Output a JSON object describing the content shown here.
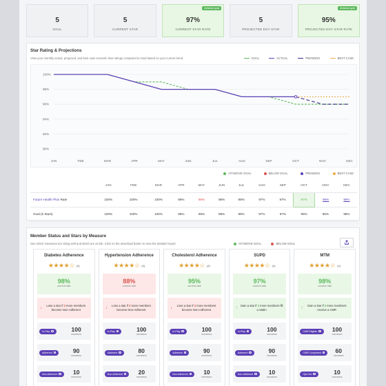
{
  "kpis": [
    {
      "value": "5",
      "label": "GOAL",
      "badge": ""
    },
    {
      "value": "5",
      "label": "CURRENT STAR",
      "badge": ""
    },
    {
      "value": "97%",
      "label": "CURRENT STAR RATE",
      "badge": "At/above goal"
    },
    {
      "value": "5",
      "label": "PROJECTED EOY STAR",
      "badge": ""
    },
    {
      "value": "95%",
      "label": "PROJECTED EOY STAR RATE",
      "badge": "At/above goal"
    }
  ],
  "star_panel": {
    "title": "Star Rating & Projections",
    "subtitle": "View your monthly actual, projected, and best case scenario Star ratings compared to Goal based on your current trend",
    "legend_top": [
      {
        "label": "GOAL",
        "color": "#5cb85c"
      },
      {
        "label": "ACTUAL",
        "color": "#5b3fb5"
      },
      {
        "label": "TRENDING",
        "color": "#3a2a8a"
      },
      {
        "label": "BEST CASE",
        "color": "#f0ad4e"
      }
    ],
    "legend_bottom": [
      {
        "label": "AT/ABOVE GOAL",
        "color": "#5cb85c"
      },
      {
        "label": "BELOW GOAL",
        "color": "#d9534f"
      },
      {
        "label": "TRENDING",
        "color": "#5b3fb5"
      },
      {
        "label": "BEST CASE",
        "color": "#f0ad4e"
      }
    ],
    "table": {
      "months": [
        "JAN",
        "FEB",
        "MAR",
        "APR",
        "MAY",
        "JUN",
        "JUL",
        "AUG",
        "SEP",
        "OCT",
        "NOV",
        "DEC"
      ],
      "rate_row_plan": "Future Health Plan",
      "rate_row_suffix": " Rate",
      "rate_values": [
        "100%",
        "100%",
        "100%",
        "99%",
        "98%",
        "98%",
        "98%",
        "97%",
        "97%",
        "97%",
        "96%",
        "96%"
      ],
      "goal_row_label": "Goal (5 Stars)",
      "goal_values": [
        "100%",
        "100%",
        "100%",
        "99%",
        "99%",
        "98%",
        "98%",
        "97%",
        "97%",
        "96%",
        "96%",
        "96%"
      ]
    }
  },
  "chart_data": {
    "type": "line",
    "x": [
      "JAN",
      "FEB",
      "MAR",
      "APR",
      "MAY",
      "JUN",
      "JUL",
      "AUG",
      "SEP",
      "OCT",
      "NOV",
      "DEC"
    ],
    "ylim": [
      90,
      100
    ],
    "yticks": [
      "100%",
      "98%",
      "96%",
      "94%",
      "92%",
      "90%"
    ],
    "series": [
      {
        "name": "GOAL",
        "values": [
          100,
          100,
          100,
          99,
          99,
          98,
          98,
          97,
          97,
          96,
          96,
          96
        ],
        "color": "#5cb85c",
        "dash": "3,2"
      },
      {
        "name": "ACTUAL",
        "values": [
          100,
          100,
          100,
          99,
          98,
          98,
          98,
          97,
          97,
          97,
          null,
          null
        ],
        "color": "#5b3fb5",
        "dash": ""
      },
      {
        "name": "TRENDING",
        "values": [
          null,
          null,
          null,
          null,
          null,
          null,
          null,
          null,
          null,
          97,
          96,
          96
        ],
        "color": "#3a2a8a",
        "dash": "5,3"
      },
      {
        "name": "BEST CASE",
        "values": [
          null,
          null,
          null,
          null,
          null,
          null,
          null,
          null,
          null,
          97,
          97,
          97
        ],
        "color": "#f0ad4e",
        "dash": "2,2"
      }
    ],
    "grid": true
  },
  "member_panel": {
    "title": "Member Status and Stars by Measure",
    "subtitle": "See which measures are doing well and which are at risk. Click on the download button to view the detailed report.",
    "legend": [
      {
        "label": "AT/ABOVE GOAL",
        "color": "#5cb85c"
      },
      {
        "label": "BELOW GOAL",
        "color": "#d9534f"
      }
    ],
    "export_icon": "export-icon",
    "cards": [
      {
        "title": "Diabetes Adherence",
        "stars": "★★★★☆",
        "star_count": "(4)",
        "rate": "98%",
        "rate_label": "current rate",
        "bad": false,
        "msg_up": false,
        "msg_pre": "Lose a star if ",
        "msg_num": "3",
        "msg_post": " more members become Non-Adherent",
        "stats": [
          {
            "pill": "In-Play",
            "n": "100",
            "m": "members"
          },
          {
            "pill": "Adherent",
            "n": "90",
            "m": "members"
          },
          {
            "pill": "Non-Adherent",
            "n": "10",
            "m": "members"
          }
        ]
      },
      {
        "title": "Hypertension Adherence",
        "stars": "★★★★☆",
        "star_count": "(4)",
        "rate": "88%",
        "rate_label": "current rate",
        "bad": true,
        "msg_up": false,
        "msg_pre": "Lose a star if ",
        "msg_num": "3",
        "msg_post": " more members become Non-Adherent",
        "stats": [
          {
            "pill": "In-Play",
            "n": "100",
            "m": "members"
          },
          {
            "pill": "Adherent",
            "n": "80",
            "m": "members"
          },
          {
            "pill": "Non-Adherent",
            "n": "20",
            "m": "members"
          }
        ]
      },
      {
        "title": "Cholesterol Adherence",
        "stars": "★★★★☆",
        "star_count": "(4)",
        "rate": "95%",
        "rate_label": "current rate",
        "bad": false,
        "msg_up": false,
        "msg_pre": "Lose a star if ",
        "msg_num": "3",
        "msg_post": " more members become Non-Adherent",
        "stats": [
          {
            "pill": "In-Play",
            "n": "100",
            "m": "members"
          },
          {
            "pill": "Adherent",
            "n": "90",
            "m": "members"
          },
          {
            "pill": "Non-Adherent",
            "n": "10",
            "m": "members"
          }
        ]
      },
      {
        "title": "SUPD",
        "stars": "★★★★☆",
        "star_count": "(4)",
        "rate": "97%",
        "rate_label": "current rate",
        "bad": false,
        "msg_up": true,
        "msg_pre": "Gain a star if ",
        "msg_num": "2",
        "msg_post": " more members fill a Statin",
        "stats": [
          {
            "pill": "In-Play",
            "n": "100",
            "m": "members"
          },
          {
            "pill": "Adherent",
            "n": "90",
            "m": "members"
          },
          {
            "pill": "Non-Adherent",
            "n": "10",
            "m": "members"
          }
        ]
      },
      {
        "title": "MTM",
        "stars": "★★★★☆",
        "star_count": "(4)",
        "rate": "98%",
        "rate_label": "current rate",
        "bad": false,
        "msg_up": true,
        "msg_pre": "Gain a star if ",
        "msg_num": "2",
        "msg_post": " more members receive a CMR",
        "stats": [
          {
            "pill": "CMR Eligible",
            "n": "100",
            "m": "members"
          },
          {
            "pill": "CMR Completed",
            "n": "60",
            "m": "members"
          },
          {
            "pill": "Opt-Out",
            "n": "10",
            "m": "members"
          }
        ]
      }
    ]
  }
}
